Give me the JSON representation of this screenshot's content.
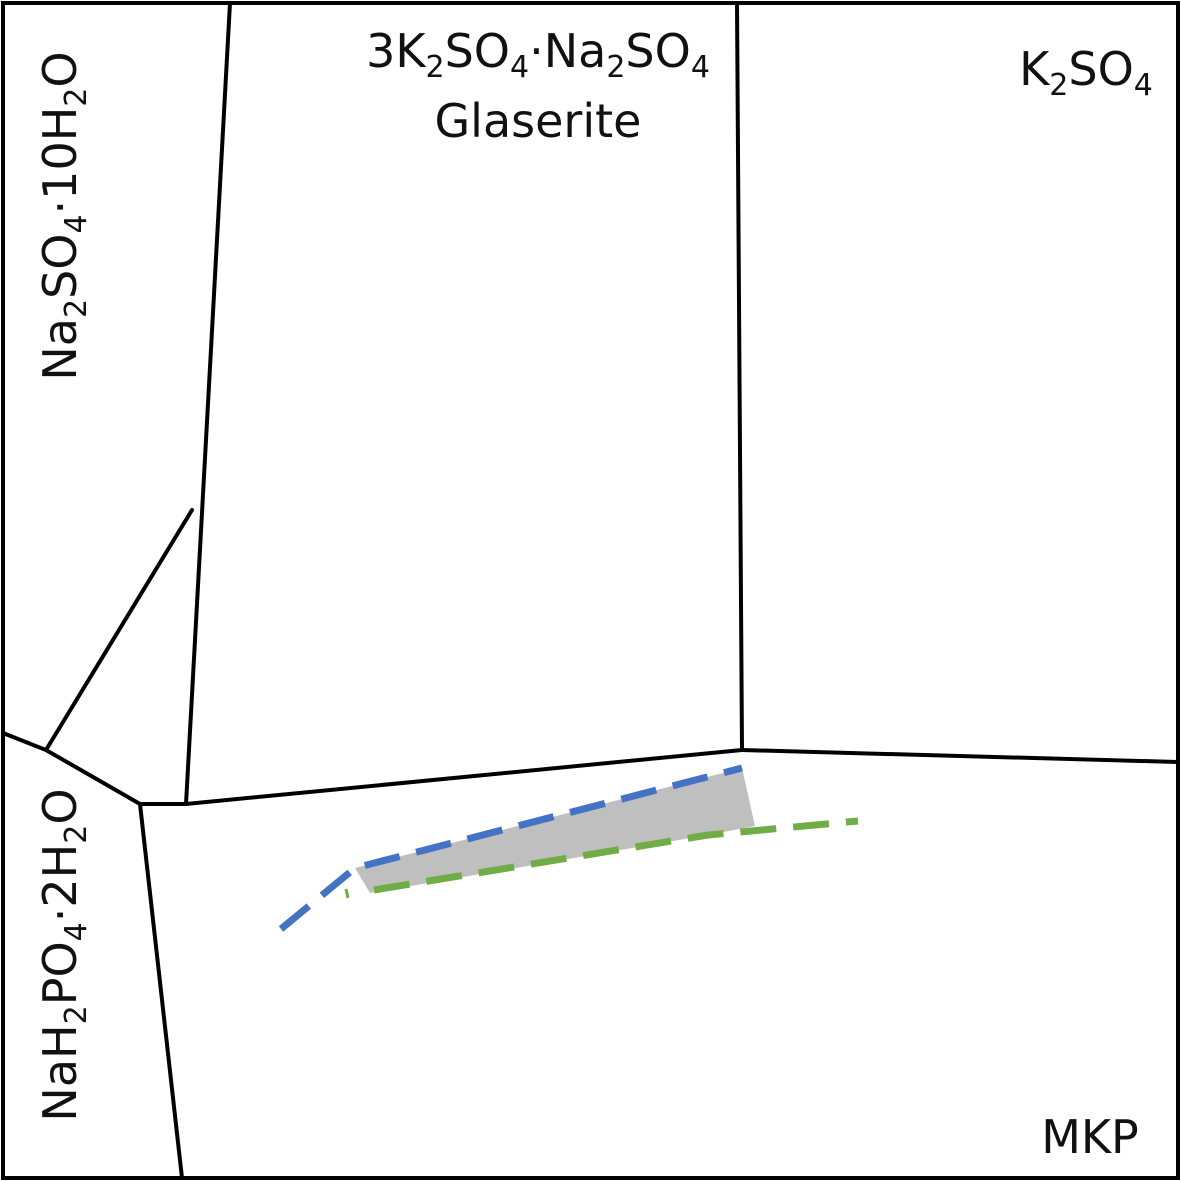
{
  "diagram": {
    "regions": {
      "glaserite": {
        "formula": {
          "a": "3K",
          "a_sub": "2",
          "b": "SO",
          "b_sub": "4",
          "c": "·Na",
          "c_sub": "2",
          "d": "SO",
          "d_sub": "4"
        },
        "name": "Glaserite"
      },
      "k2so4": {
        "formula": {
          "a": "K",
          "a_sub": "2",
          "b": "SO",
          "b_sub": "4"
        }
      },
      "na2so4": {
        "formula": {
          "a": "Na",
          "a_sub": "2",
          "b": "SO",
          "b_sub": "4",
          "c": "·10H",
          "c_sub": "2",
          "d": "O"
        }
      },
      "nah2po4": {
        "formula": {
          "a": "NaH",
          "a_sub": "2",
          "b": "PO",
          "b_sub": "4",
          "c": "·2H",
          "c_sub": "2",
          "d": "O"
        }
      },
      "mkp": {
        "name": "MKP"
      }
    },
    "colors": {
      "boundary": "#000000",
      "blue_dashed": "#4472c4",
      "green_dashed": "#70ad47",
      "shaded_region": "#bfbfbf"
    }
  }
}
